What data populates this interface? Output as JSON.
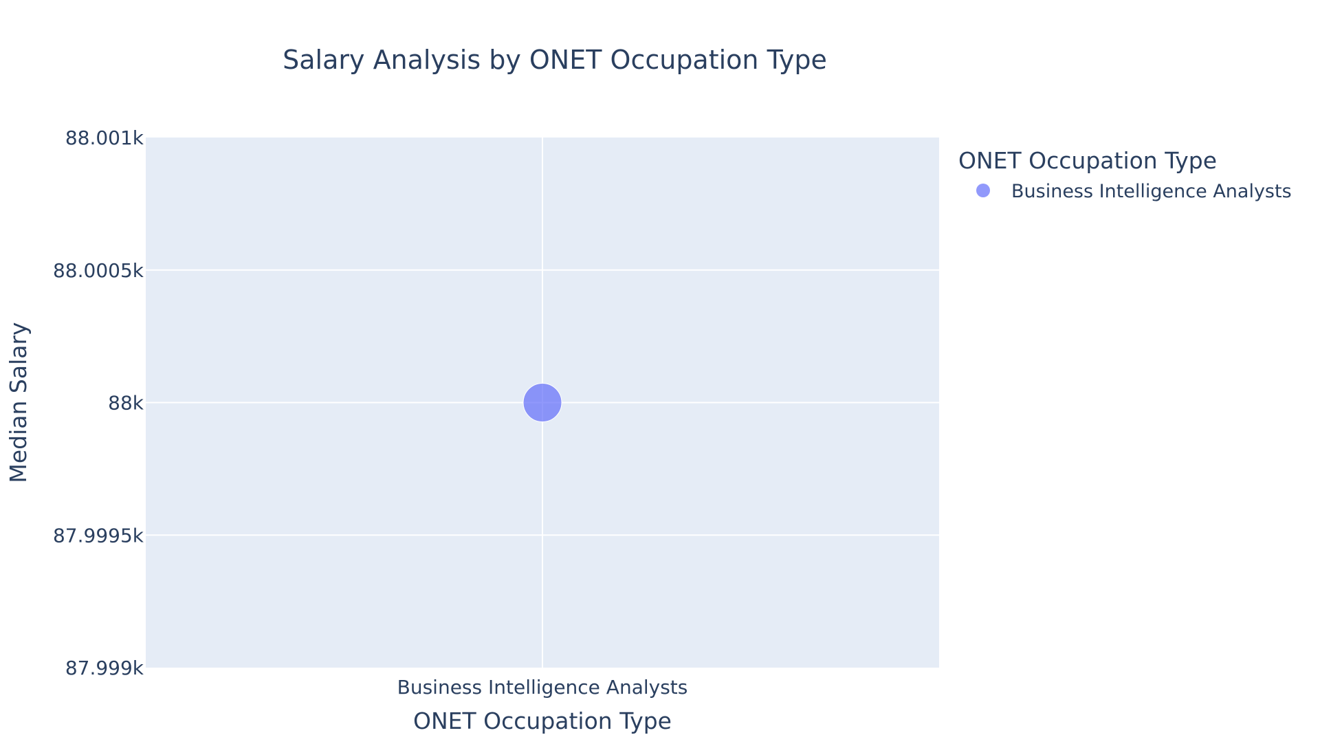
{
  "chart_data": {
    "type": "scatter",
    "title": "Salary Analysis by ONET Occupation Type",
    "xlabel": "ONET Occupation Type",
    "ylabel": "Median Salary",
    "categories": [
      "Business Intelligence Analysts"
    ],
    "ylim": [
      87999,
      88001
    ],
    "y_ticks": [
      {
        "value": 88001,
        "label": "88.001k"
      },
      {
        "value": 88000.5,
        "label": "88.0005k"
      },
      {
        "value": 88000,
        "label": "88k"
      },
      {
        "value": 87999.5,
        "label": "87.9995k"
      },
      {
        "value": 87999,
        "label": "87.999k"
      }
    ],
    "grid": true,
    "legend": {
      "title": "ONET Occupation Type",
      "placement": "top-right"
    },
    "series": [
      {
        "name": "Business Intelligence Analysts",
        "color": "#636efa",
        "points": [
          {
            "x": "Business Intelligence Analysts",
            "y": 88000
          }
        ]
      }
    ],
    "colors": {
      "plot_background": "#e5ecf6",
      "grid": "#ffffff",
      "text": "#2a3f5f"
    }
  }
}
